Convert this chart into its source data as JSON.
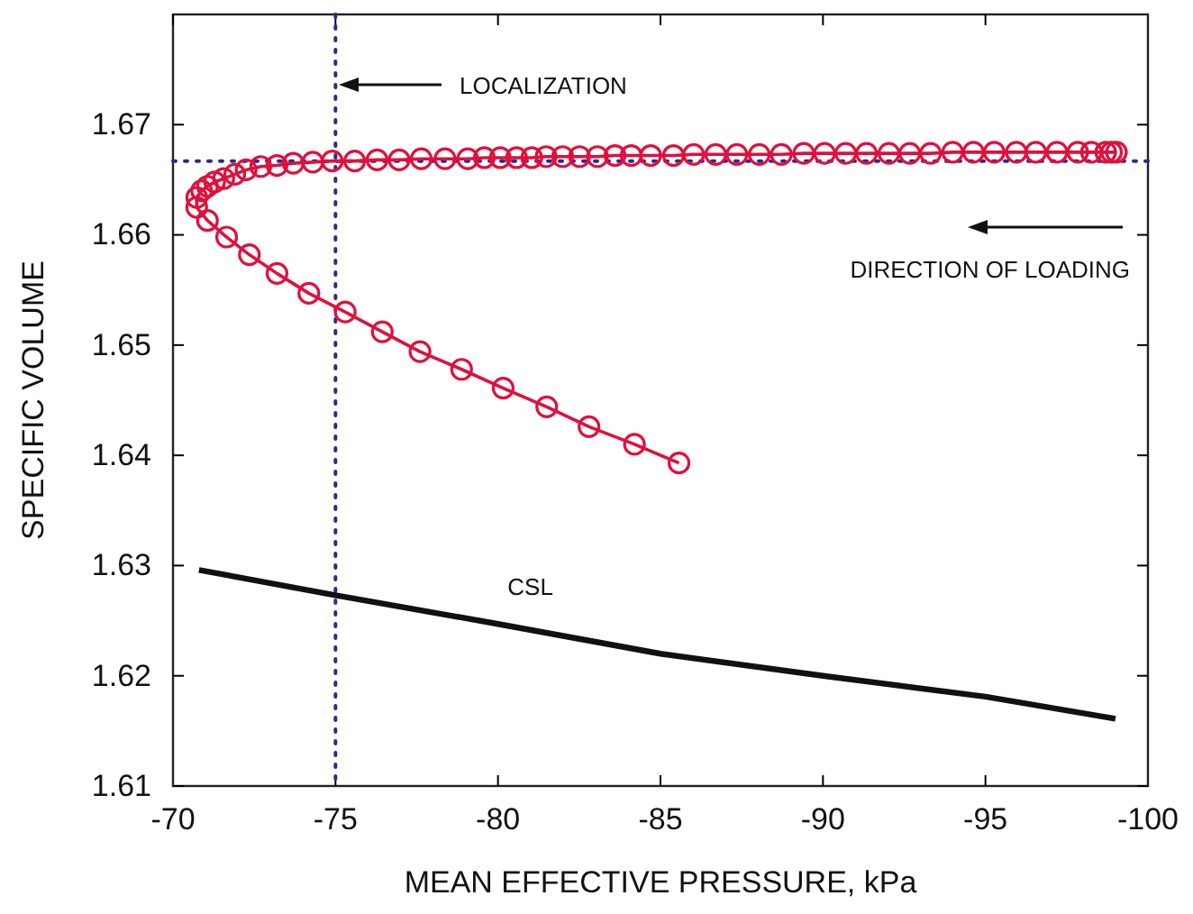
{
  "chart_data": {
    "type": "line",
    "xlabel": "MEAN EFFECTIVE PRESSURE, kPa",
    "ylabel": "SPECIFIC VOLUME",
    "xlim": [
      -70,
      -100
    ],
    "xticks": [
      -70,
      -75,
      -80,
      -85,
      -90,
      -95,
      -100
    ],
    "ylim": [
      1.61,
      1.68
    ],
    "yticks": [
      1.61,
      1.62,
      1.63,
      1.64,
      1.65,
      1.66,
      1.67
    ],
    "grid": false,
    "legend": false,
    "ref_lines": [
      {
        "axis": "x",
        "value": -75,
        "label": null,
        "color": "#2b2b8c",
        "line_style": "dotted"
      },
      {
        "axis": "y",
        "value": 1.6667,
        "label": null,
        "color": "#2b2b8c",
        "line_style": "dotted"
      }
    ],
    "annotations": [
      "LOCALIZATION",
      "DIRECTION OF LOADING"
    ],
    "series": [
      {
        "color": "#e0103c",
        "marker": "circle",
        "line_style": "solid",
        "x": [
          -99.03,
          -98.88,
          -98.7,
          -98.26,
          -97.84,
          -97.2,
          -96.55,
          -95.95,
          -95.27,
          -94.63,
          -93.99,
          -93.31,
          -92.67,
          -92.03,
          -91.34,
          -90.7,
          -90.05,
          -89.41,
          -88.72,
          -88.04,
          -87.35,
          -86.7,
          -86.02,
          -85.4,
          -84.7,
          -84.1,
          -83.6,
          -83.06,
          -82.51,
          -81.99,
          -81.48,
          -81.04,
          -80.57,
          -80.07,
          -79.58,
          -79.07,
          -78.37,
          -77.64,
          -76.96,
          -76.28,
          -75.59,
          -74.9,
          -74.3,
          -73.7,
          -73.2,
          -72.7,
          -72.25,
          -71.9,
          -71.56,
          -71.28,
          -71.06,
          -70.88,
          -70.73,
          -70.73,
          -71.06,
          -71.65,
          -72.35,
          -73.2,
          -74.18,
          -75.3,
          -76.44,
          -77.6,
          -78.88,
          -80.16,
          -81.5,
          -82.8,
          -84.2,
          -85.57
        ],
        "values": [
          1.6675,
          1.6675,
          1.6675,
          1.6675,
          1.6675,
          1.6675,
          1.6675,
          1.6675,
          1.6675,
          1.6675,
          1.6675,
          1.6674,
          1.6674,
          1.6674,
          1.6674,
          1.6674,
          1.6674,
          1.6674,
          1.6673,
          1.6673,
          1.6673,
          1.6673,
          1.6673,
          1.6672,
          1.6672,
          1.6672,
          1.6672,
          1.6671,
          1.6671,
          1.6671,
          1.6671,
          1.667,
          1.667,
          1.667,
          1.667,
          1.6669,
          1.6669,
          1.6669,
          1.6668,
          1.6668,
          1.6667,
          1.6667,
          1.6666,
          1.6665,
          1.6663,
          1.6662,
          1.6659,
          1.6655,
          1.6651,
          1.6648,
          1.6644,
          1.664,
          1.6634,
          1.6625,
          1.6613,
          1.6598,
          1.6582,
          1.6565,
          1.6547,
          1.653,
          1.6512,
          1.6494,
          1.6478,
          1.6461,
          1.6444,
          1.6426,
          1.641,
          1.6393
        ]
      },
      {
        "name": "CSL",
        "color": "#111111",
        "marker": "none",
        "line_style": "solid",
        "x": [
          -70.8,
          -75,
          -80,
          -85,
          -90,
          -95,
          -99
        ],
        "values": [
          1.6296,
          1.6273,
          1.6247,
          1.622,
          1.62,
          1.6181,
          1.6161
        ]
      }
    ]
  }
}
